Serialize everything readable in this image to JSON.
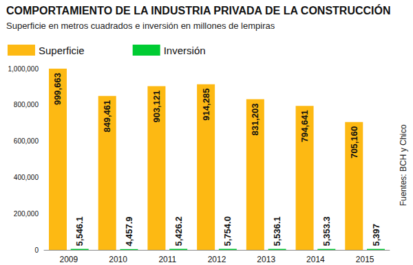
{
  "chart_data": {
    "type": "bar",
    "title": "COMPORTAMIENTO DE LA INDUSTRIA PRIVADA DE LA CONSTRUCCIÓN",
    "subtitle": "Superficie en metros cuadrados e inversión en millones de lempiras",
    "annotations": [
      "Fuentes: BCH y Chico"
    ],
    "categories": [
      "2009",
      "2010",
      "2011",
      "2012",
      "2013",
      "2014",
      "2015"
    ],
    "series": [
      {
        "name": "Superficie",
        "color": "#fdb913",
        "values": [
          999663,
          849461,
          903121,
          914285,
          831203,
          794641,
          705160
        ],
        "value_labels": [
          "999,663",
          "849,461",
          "903,121",
          "914,285",
          "831,203",
          "794,641",
          "705,160"
        ]
      },
      {
        "name": "Inversión",
        "color": "#00cc33",
        "values": [
          5546.1,
          4457.9,
          5426.2,
          5754.0,
          5536.1,
          5353.3,
          5397
        ],
        "value_labels": [
          "5,546.1",
          "4,457.9",
          "5,426.2",
          "5,754.0",
          "5,536.1",
          "5,353.3",
          "5,397"
        ]
      }
    ],
    "ylim": [
      0,
      1000000
    ],
    "yticks": [
      0,
      {
        "value": 200000,
        "label": "200,000"
      },
      {
        "value": 400000,
        "label": "400,000"
      },
      {
        "value": 600000,
        "label": "600,000"
      },
      {
        "value": 800000,
        "label": "800,000"
      },
      {
        "value": 1000000,
        "label": "1,000,000"
      }
    ],
    "grid": false,
    "legend": "top-left",
    "data_labels": true
  }
}
